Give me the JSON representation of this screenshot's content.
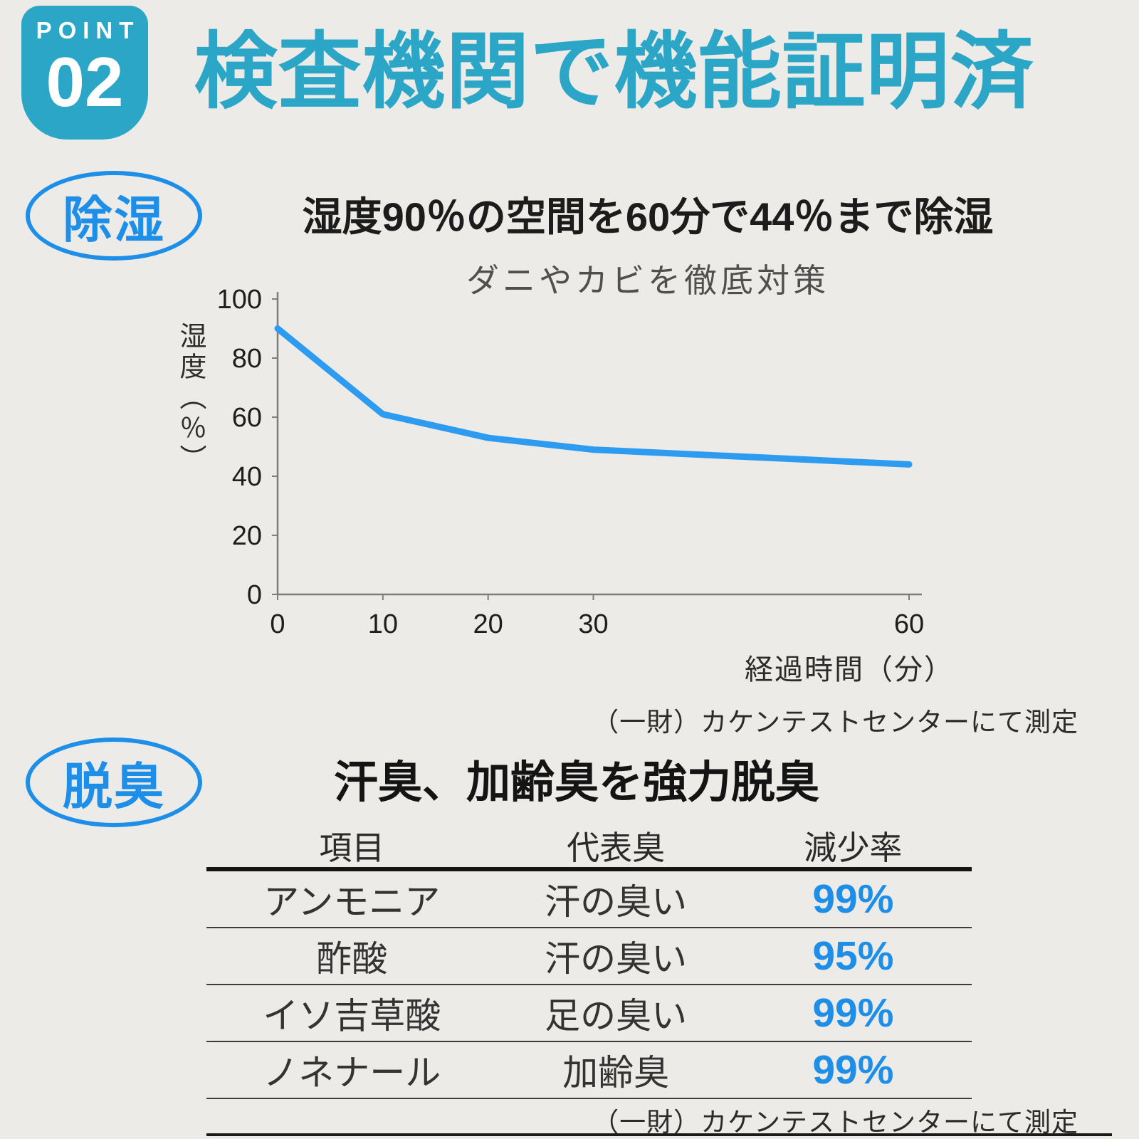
{
  "badge": {
    "label": "POINT",
    "number": "02"
  },
  "title": "検査機関で機能証明済",
  "dehumidify_section": {
    "tag": "除湿",
    "source": "（一財）カケンテストセンターにて測定"
  },
  "deodorize_section": {
    "tag": "脱臭",
    "headline": "汗臭、加齢臭を強力脱臭",
    "source": "（一財）カケンテストセンターにて測定",
    "table": {
      "headers": [
        "項目",
        "代表臭",
        "減少率"
      ],
      "rows": [
        {
          "item": "アンモニア",
          "odor": "汗の臭い",
          "rate": "99%"
        },
        {
          "item": "酢酸",
          "odor": "汗の臭い",
          "rate": "95%"
        },
        {
          "item": "イソ吉草酸",
          "odor": "足の臭い",
          "rate": "99%"
        },
        {
          "item": "ノネナール",
          "odor": "加齢臭",
          "rate": "99%"
        }
      ]
    }
  },
  "chart_data": {
    "type": "line",
    "title": "湿度90％の空間を60分で44％まで除湿",
    "subtitle": "ダニやカビを徹底対策",
    "x": [
      0,
      10,
      20,
      30,
      60
    ],
    "series": [
      {
        "name": "湿度",
        "values": [
          90,
          61,
          53,
          49,
          44
        ]
      }
    ],
    "xlabel": "経過時間（分）",
    "ylabel": "湿度（％）",
    "xlim": [
      0,
      60
    ],
    "ylim": [
      0,
      100
    ],
    "x_ticks": [
      0,
      10,
      20,
      30,
      60
    ],
    "y_ticks": [
      0,
      20,
      40,
      60,
      80,
      100
    ],
    "grid": false,
    "legend": false,
    "line_color": "#2d9bf0"
  },
  "colors": {
    "accent_teal": "#2ba6c7",
    "accent_blue": "#1e8fe8",
    "chart_line": "#2d9bf0",
    "background": "#edebe7"
  }
}
